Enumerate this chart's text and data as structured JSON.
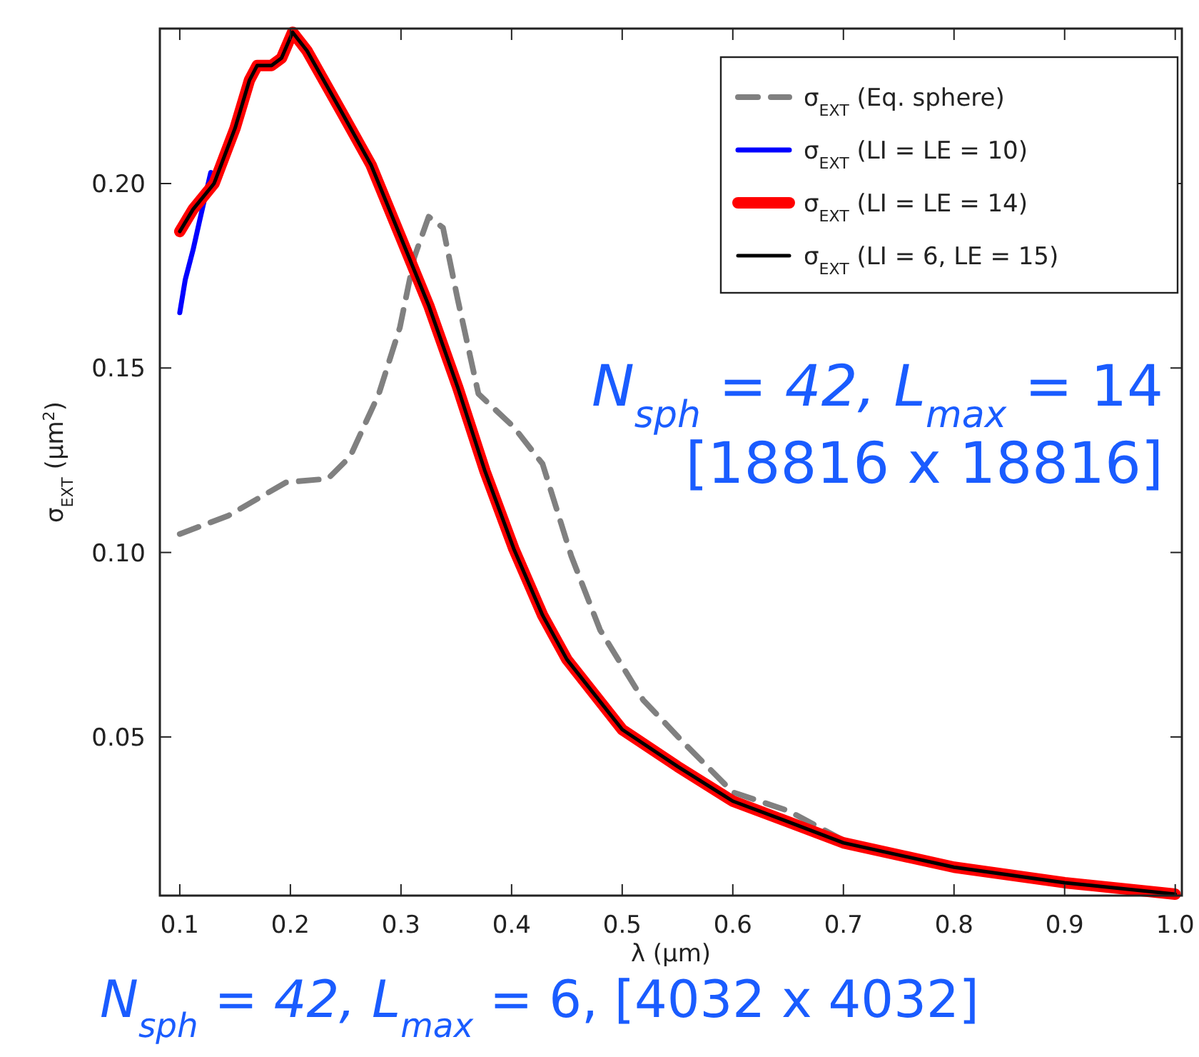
{
  "chart_data": {
    "type": "line",
    "xlabel": "λ (μm)",
    "ylabel": "σ$_{EXT}$ (μm$^{2}$)",
    "xlim": [
      0.082,
      1.006
    ],
    "ylim": [
      0.007,
      0.242
    ],
    "xticks": [
      0.1,
      0.2,
      0.3,
      0.4,
      0.5,
      0.6,
      0.7,
      0.8,
      0.9,
      {
        "value": 1.0,
        "label": "1.0"
      }
    ],
    "yticks": [
      0.05,
      {
        "value": 0.1,
        "label": "0.10"
      },
      {
        "value": 0.15,
        "label": "0.15"
      },
      {
        "value": 0.2,
        "label": "0.20"
      }
    ],
    "grid": false,
    "legend": "top right",
    "annotations": [
      "N$_{sph}$ = 42, L$_{max}$ = 14",
      "[18816 x 18816]",
      "N$_{sph}$ = 42, L$_{max}$ = 6, [4032 x 4032]"
    ],
    "series": [
      {
        "name": "σ$_{EXT}$ (Eq. sphere)",
        "color": "#808080",
        "line_style": "dashed",
        "x": [
          0.1,
          0.144,
          0.196,
          0.234,
          0.254,
          0.28,
          0.299,
          0.312,
          0.325,
          0.338,
          0.351,
          0.37,
          0.402,
          0.428,
          0.454,
          0.48,
          0.519,
          0.557,
          0.6,
          0.65,
          0.7
        ],
        "values": [
          0.105,
          0.11,
          0.119,
          0.12,
          0.126,
          0.143,
          0.161,
          0.18,
          0.191,
          0.188,
          0.169,
          0.143,
          0.134,
          0.124,
          0.099,
          0.079,
          0.06,
          0.048,
          0.035,
          0.03,
          0.022
        ]
      },
      {
        "name": "σ$_{EXT}$ (LI = LE = 10)",
        "color": "#0000ff",
        "line_style": "solid",
        "x": [
          0.1,
          0.105,
          0.112,
          0.118,
          0.128
        ],
        "values": [
          0.165,
          0.174,
          0.182,
          0.19,
          0.203
        ]
      },
      {
        "name": "σ$_{EXT}$ (LI = LE = 14)",
        "color": "#ff0000",
        "line_style": "solid",
        "x": [
          0.1,
          0.112,
          0.131,
          0.15,
          0.163,
          0.17,
          0.183,
          0.192,
          0.202,
          0.215,
          0.247,
          0.273,
          0.299,
          0.325,
          0.351,
          0.376,
          0.402,
          0.428,
          0.45,
          0.5,
          0.55,
          0.6,
          0.65,
          0.7,
          0.8,
          0.9,
          1.0
        ],
        "values": [
          0.187,
          0.193,
          0.2,
          0.215,
          0.228,
          0.232,
          0.232,
          0.234,
          0.241,
          0.236,
          0.219,
          0.205,
          0.186,
          0.167,
          0.145,
          0.122,
          0.101,
          0.083,
          0.071,
          0.052,
          0.042,
          0.0326,
          0.027,
          0.0213,
          0.0147,
          0.0105,
          0.0074
        ]
      },
      {
        "name": "σ$_{EXT}$ (LI = 6, LE = 15)",
        "color": "#000000",
        "line_style": "solid",
        "x": [
          0.1,
          0.112,
          0.131,
          0.15,
          0.163,
          0.17,
          0.183,
          0.192,
          0.202,
          0.215,
          0.247,
          0.273,
          0.299,
          0.325,
          0.351,
          0.376,
          0.402,
          0.428,
          0.45,
          0.5,
          0.55,
          0.6,
          0.65,
          0.7,
          0.8,
          0.9,
          1.0
        ],
        "values": [
          0.187,
          0.193,
          0.2,
          0.215,
          0.228,
          0.232,
          0.232,
          0.234,
          0.241,
          0.236,
          0.219,
          0.205,
          0.186,
          0.167,
          0.145,
          0.122,
          0.101,
          0.083,
          0.071,
          0.052,
          0.042,
          0.0326,
          0.027,
          0.0213,
          0.0147,
          0.0105,
          0.0074
        ]
      }
    ]
  }
}
